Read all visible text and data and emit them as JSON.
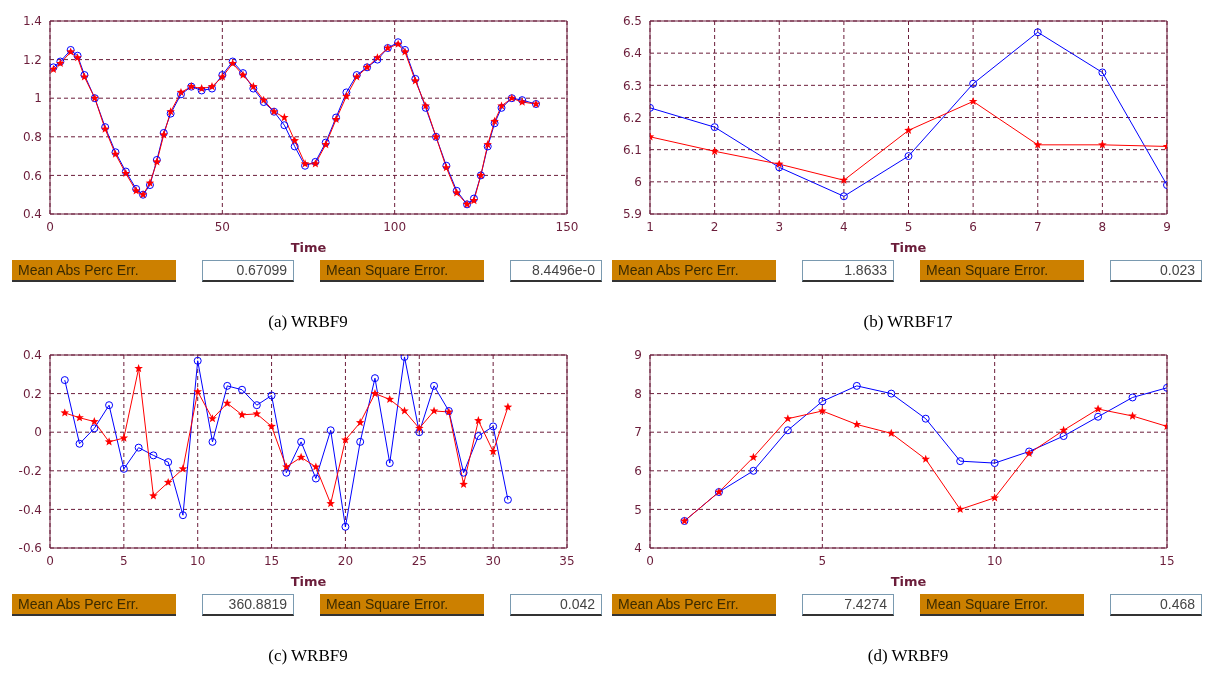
{
  "chart_data": [
    {
      "type": "line",
      "xlabel": "Time",
      "xlim": [
        0,
        150
      ],
      "xticks": [
        0,
        50,
        100,
        150
      ],
      "ylim": [
        0.4,
        1.4
      ],
      "yticks": [
        0.4,
        0.6,
        0.8,
        1,
        1.2,
        1.4
      ],
      "grid": true,
      "line_style": "solid",
      "annotations": [
        "Mean Abs Perc Err.",
        "0.67099",
        "Mean Square Error.",
        "8.4496e-0",
        "(a) WRBF9"
      ],
      "series": [
        {
          "color": "#0000ff",
          "marker": "circle",
          "x": [
            1,
            3,
            6,
            8,
            10,
            13,
            16,
            19,
            22,
            25,
            27,
            29,
            31,
            33,
            35,
            38,
            41,
            44,
            47,
            50,
            53,
            56,
            59,
            62,
            65,
            68,
            71,
            74,
            77,
            80,
            83,
            86,
            89,
            92,
            95,
            98,
            101,
            103,
            106,
            109,
            112,
            115,
            118,
            121,
            123,
            125,
            127,
            129,
            131,
            134,
            137,
            141
          ],
          "values": [
            1.16,
            1.19,
            1.25,
            1.22,
            1.12,
            1.0,
            0.85,
            0.72,
            0.62,
            0.53,
            0.5,
            0.55,
            0.68,
            0.82,
            0.92,
            1.02,
            1.06,
            1.04,
            1.05,
            1.12,
            1.19,
            1.13,
            1.05,
            0.98,
            0.93,
            0.86,
            0.75,
            0.65,
            0.67,
            0.77,
            0.9,
            1.03,
            1.12,
            1.16,
            1.2,
            1.26,
            1.29,
            1.25,
            1.1,
            0.95,
            0.8,
            0.65,
            0.52,
            0.45,
            0.48,
            0.6,
            0.75,
            0.87,
            0.95,
            1.0,
            0.99,
            0.97
          ]
        },
        {
          "color": "#ff0000",
          "marker": "star",
          "x": [
            1,
            3,
            6,
            8,
            10,
            13,
            16,
            19,
            22,
            25,
            27,
            29,
            31,
            33,
            35,
            38,
            41,
            44,
            47,
            50,
            53,
            56,
            59,
            62,
            65,
            68,
            71,
            74,
            77,
            80,
            83,
            86,
            89,
            92,
            95,
            98,
            101,
            103,
            106,
            109,
            112,
            115,
            118,
            121,
            123,
            125,
            127,
            129,
            131,
            134,
            137,
            141
          ],
          "values": [
            1.15,
            1.18,
            1.24,
            1.21,
            1.11,
            1.0,
            0.84,
            0.71,
            0.61,
            0.52,
            0.5,
            0.56,
            0.67,
            0.81,
            0.93,
            1.03,
            1.06,
            1.05,
            1.06,
            1.11,
            1.18,
            1.12,
            1.06,
            0.99,
            0.93,
            0.9,
            0.78,
            0.66,
            0.66,
            0.76,
            0.89,
            1.01,
            1.11,
            1.16,
            1.21,
            1.26,
            1.28,
            1.24,
            1.09,
            0.96,
            0.8,
            0.64,
            0.51,
            0.45,
            0.47,
            0.6,
            0.76,
            0.88,
            0.96,
            1.0,
            0.98,
            0.97
          ]
        }
      ]
    },
    {
      "type": "line",
      "xlabel": "Time",
      "xlim": [
        1,
        9
      ],
      "xticks": [
        1,
        2,
        3,
        4,
        5,
        6,
        7,
        8,
        9
      ],
      "ylim": [
        5.9,
        6.5
      ],
      "yticks": [
        5.9,
        6,
        6.1,
        6.2,
        6.3,
        6.4,
        6.5
      ],
      "grid": true,
      "line_style": "solid",
      "annotations": [
        "Mean Abs Perc Err.",
        "1.8633",
        "Mean Square Error.",
        "0.023",
        "(b) WRBF17"
      ],
      "series": [
        {
          "color": "#0000ff",
          "marker": "circle",
          "x": [
            1,
            2,
            3,
            4,
            5,
            6,
            7,
            8,
            9
          ],
          "values": [
            6.23,
            6.17,
            6.045,
            5.955,
            6.08,
            6.305,
            6.465,
            6.34,
            5.99
          ]
        },
        {
          "color": "#ff0000",
          "marker": "star",
          "x": [
            1,
            2,
            3,
            4,
            5,
            6,
            7,
            8,
            9
          ],
          "values": [
            6.14,
            6.095,
            6.055,
            6.005,
            6.16,
            6.25,
            6.115,
            6.115,
            6.11
          ]
        }
      ]
    },
    {
      "type": "line",
      "xlabel": "Time",
      "xlim": [
        0,
        35
      ],
      "xticks": [
        0,
        5,
        10,
        15,
        20,
        25,
        30,
        35
      ],
      "ylim": [
        -0.6,
        0.4
      ],
      "yticks": [
        -0.6,
        -0.4,
        -0.2,
        0,
        0.2,
        0.4
      ],
      "grid": true,
      "line_style": "solid",
      "annotations": [
        "Mean Abs Perc Err.",
        "360.8819",
        "Mean Square Error.",
        "0.042",
        "(c) WRBF9"
      ],
      "series": [
        {
          "color": "#0000ff",
          "marker": "circle",
          "x": [
            1,
            2,
            3,
            4,
            5,
            6,
            7,
            8,
            9,
            10,
            11,
            12,
            13,
            14,
            15,
            16,
            17,
            18,
            19,
            20,
            21,
            22,
            23,
            24,
            25,
            26,
            27,
            28,
            29,
            30,
            31
          ],
          "values": [
            0.27,
            -0.06,
            0.02,
            0.14,
            -0.19,
            -0.08,
            -0.12,
            -0.155,
            -0.43,
            0.37,
            -0.05,
            0.24,
            0.22,
            0.14,
            0.19,
            -0.21,
            -0.05,
            -0.24,
            0.01,
            -0.49,
            -0.05,
            0.28,
            -0.16,
            0.39,
            0.0,
            0.24,
            0.11,
            -0.21,
            -0.02,
            0.03,
            -0.35
          ]
        },
        {
          "color": "#ff0000",
          "marker": "star",
          "x": [
            1,
            2,
            3,
            4,
            5,
            6,
            7,
            8,
            9,
            10,
            11,
            12,
            13,
            14,
            15,
            16,
            17,
            18,
            19,
            20,
            21,
            22,
            23,
            24,
            25,
            26,
            27,
            28,
            29,
            30,
            31
          ],
          "values": [
            0.1,
            0.075,
            0.055,
            -0.05,
            -0.03,
            0.33,
            -0.33,
            -0.26,
            -0.19,
            0.21,
            0.07,
            0.15,
            0.09,
            0.095,
            0.03,
            -0.18,
            -0.13,
            -0.18,
            -0.37,
            -0.04,
            0.05,
            0.2,
            0.17,
            0.11,
            0.02,
            0.11,
            0.105,
            -0.27,
            0.06,
            -0.1,
            0.13
          ]
        }
      ]
    },
    {
      "type": "line",
      "xlabel": "Time",
      "xlim": [
        0,
        15
      ],
      "xticks": [
        0,
        5,
        10,
        15
      ],
      "ylim": [
        4,
        9
      ],
      "yticks": [
        4,
        5,
        6,
        7,
        8,
        9
      ],
      "grid": true,
      "line_style": "solid",
      "annotations": [
        "Mean Abs Perc Err.",
        "7.4274",
        "Mean Square Error.",
        "0.468",
        "(d) WRBF9"
      ],
      "series": [
        {
          "color": "#0000ff",
          "marker": "circle",
          "x": [
            1,
            2,
            3,
            4,
            5,
            6,
            7,
            8,
            9,
            10,
            11,
            12,
            13,
            14,
            15
          ],
          "values": [
            4.7,
            5.45,
            6.0,
            7.05,
            7.8,
            8.2,
            8.0,
            7.35,
            6.25,
            6.2,
            6.5,
            6.9,
            7.4,
            7.9,
            8.15
          ]
        },
        {
          "color": "#ff0000",
          "marker": "star",
          "x": [
            1,
            2,
            3,
            4,
            5,
            6,
            7,
            8,
            9,
            10,
            11,
            12,
            13,
            14,
            15
          ],
          "values": [
            4.7,
            5.45,
            6.35,
            7.35,
            7.55,
            7.2,
            6.97,
            6.3,
            5.0,
            5.3,
            6.45,
            7.05,
            7.6,
            7.42,
            7.15
          ]
        }
      ]
    }
  ]
}
